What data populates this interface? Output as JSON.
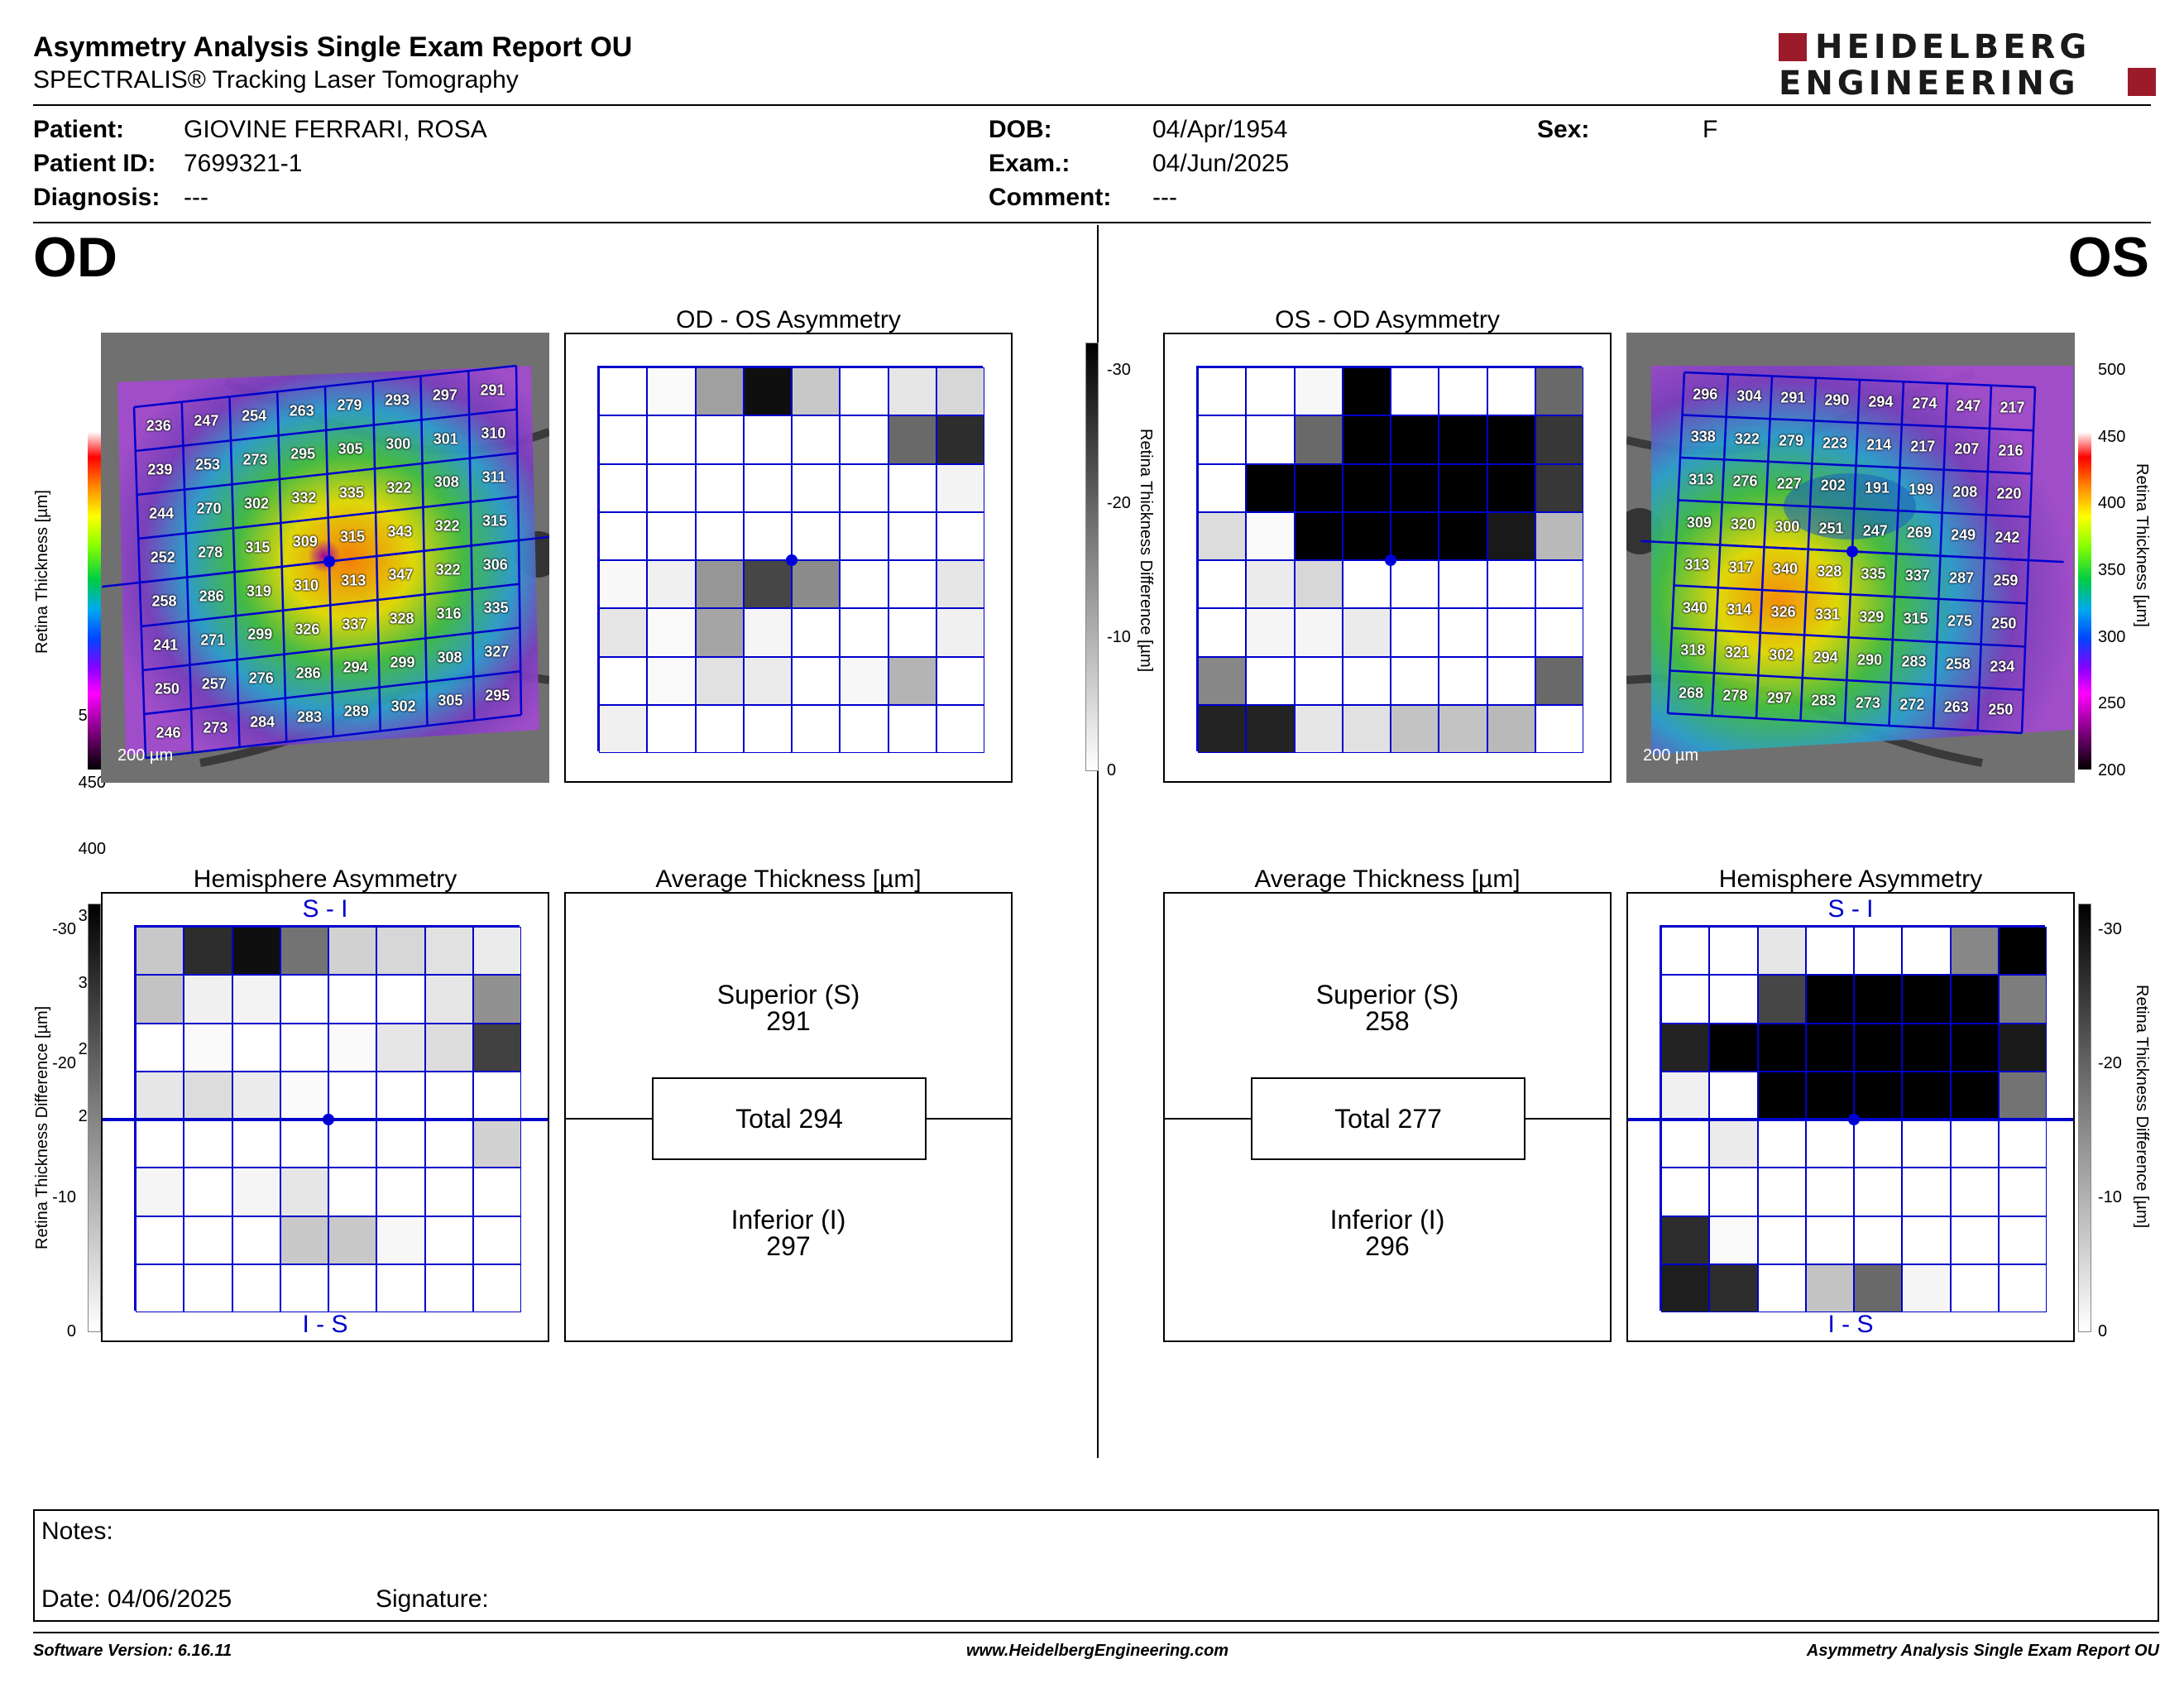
{
  "header": {
    "title": "Asymmetry Analysis Single Exam Report OU",
    "subtitle": "SPECTRALIS® Tracking Laser Tomography",
    "logo_line1": "HEIDELBERG",
    "logo_line2": "ENGINEERING",
    "logo_color": "#9b1b2a"
  },
  "patient": {
    "patient_label": "Patient:",
    "patient_value": "GIOVINE FERRARI, ROSA",
    "id_label": "Patient ID:",
    "id_value": "7699321-1",
    "diagnosis_label": "Diagnosis:",
    "diagnosis_value": "---",
    "dob_label": "DOB:",
    "dob_value": "04/Apr/1954",
    "exam_label": "Exam.:",
    "exam_value": "04/Jun/2025",
    "comment_label": "Comment:",
    "comment_value": "---",
    "sex_label": "Sex:",
    "sex_value": "F"
  },
  "od": {
    "eye_label": "OD",
    "asym_title": "OD - OS Asymmetry",
    "hemi_title": "Hemisphere Asymmetry",
    "hemi_top": "S - I",
    "hemi_bottom": "I - S",
    "avg_title": "Average Thickness [µm]",
    "superior_label": "Superior (S)",
    "superior_value": "291",
    "total_label": "Total 294",
    "inferior_label": "Inferior (I)",
    "inferior_value": "297",
    "scale_label": "200 µm",
    "thickness": [
      [
        236,
        247,
        254,
        263,
        279,
        293,
        297,
        291
      ],
      [
        239,
        253,
        273,
        295,
        305,
        300,
        301,
        310
      ],
      [
        244,
        270,
        302,
        332,
        335,
        322,
        308,
        311
      ],
      [
        252,
        278,
        315,
        309,
        315,
        343,
        322,
        315
      ],
      [
        258,
        286,
        319,
        310,
        313,
        347,
        322,
        306
      ],
      [
        241,
        271,
        299,
        326,
        337,
        328,
        316,
        335
      ],
      [
        250,
        257,
        276,
        286,
        294,
        299,
        308,
        327
      ],
      [
        246,
        273,
        284,
        283,
        289,
        302,
        305,
        295
      ]
    ],
    "asym_shades": [
      [
        0,
        5,
        95,
        240,
        55,
        0,
        25,
        40
      ],
      [
        0,
        0,
        0,
        0,
        0,
        0,
        150,
        210
      ],
      [
        0,
        0,
        0,
        0,
        0,
        0,
        0,
        12
      ],
      [
        0,
        0,
        0,
        0,
        0,
        0,
        0,
        0
      ],
      [
        6,
        15,
        105,
        185,
        115,
        0,
        0,
        25
      ],
      [
        25,
        5,
        90,
        10,
        0,
        0,
        0,
        15
      ],
      [
        0,
        5,
        30,
        20,
        0,
        8,
        75,
        0
      ],
      [
        15,
        0,
        0,
        0,
        0,
        0,
        0,
        0
      ]
    ],
    "hemi_shades": [
      [
        55,
        210,
        240,
        140,
        45,
        40,
        30,
        20
      ],
      [
        60,
        15,
        12,
        0,
        0,
        0,
        25,
        110
      ],
      [
        0,
        5,
        0,
        0,
        5,
        25,
        35,
        190
      ],
      [
        25,
        35,
        20,
        5,
        0,
        0,
        0,
        0
      ],
      [
        0,
        0,
        0,
        0,
        0,
        0,
        0,
        45
      ],
      [
        10,
        0,
        10,
        25,
        0,
        0,
        0,
        0
      ],
      [
        0,
        0,
        0,
        55,
        55,
        8,
        0,
        0
      ],
      [
        0,
        0,
        0,
        0,
        0,
        0,
        0,
        0
      ]
    ]
  },
  "os": {
    "eye_label": "OS",
    "asym_title": "OS - OD Asymmetry",
    "hemi_title": "Hemisphere Asymmetry",
    "hemi_top": "S - I",
    "hemi_bottom": "I - S",
    "avg_title": "Average Thickness [µm]",
    "superior_label": "Superior (S)",
    "superior_value": "258",
    "total_label": "Total 277",
    "inferior_label": "Inferior (I)",
    "inferior_value": "296",
    "scale_label": "200 µm",
    "thickness": [
      [
        296,
        304,
        291,
        290,
        294,
        274,
        247,
        217
      ],
      [
        338,
        322,
        279,
        223,
        214,
        217,
        207,
        216
      ],
      [
        313,
        276,
        227,
        202,
        191,
        199,
        208,
        220
      ],
      [
        309,
        320,
        300,
        251,
        247,
        269,
        249,
        242
      ],
      [
        313,
        317,
        340,
        328,
        335,
        337,
        287,
        259
      ],
      [
        340,
        314,
        326,
        331,
        329,
        315,
        275,
        250
      ],
      [
        318,
        321,
        302,
        294,
        290,
        283,
        258,
        234
      ],
      [
        268,
        278,
        297,
        283,
        273,
        272,
        263,
        250
      ]
    ],
    "asym_shades": [
      [
        0,
        0,
        8,
        255,
        0,
        0,
        0,
        150
      ],
      [
        0,
        0,
        150,
        255,
        255,
        255,
        255,
        200
      ],
      [
        0,
        255,
        255,
        255,
        255,
        255,
        255,
        200
      ],
      [
        35,
        5,
        255,
        255,
        255,
        255,
        230,
        70
      ],
      [
        0,
        20,
        40,
        0,
        0,
        0,
        0,
        0
      ],
      [
        0,
        10,
        10,
        20,
        0,
        0,
        0,
        0
      ],
      [
        120,
        0,
        0,
        0,
        0,
        0,
        0,
        150
      ],
      [
        220,
        220,
        25,
        30,
        60,
        60,
        70,
        0
      ]
    ],
    "hemi_shades": [
      [
        0,
        0,
        25,
        0,
        0,
        0,
        120,
        255
      ],
      [
        0,
        0,
        185,
        255,
        255,
        255,
        255,
        130
      ],
      [
        220,
        255,
        255,
        255,
        255,
        255,
        255,
        230
      ],
      [
        15,
        0,
        255,
        255,
        255,
        255,
        255,
        140
      ],
      [
        0,
        20,
        0,
        0,
        0,
        0,
        0,
        0
      ],
      [
        0,
        0,
        0,
        0,
        0,
        0,
        0,
        0
      ],
      [
        210,
        5,
        0,
        0,
        0,
        0,
        0,
        0
      ],
      [
        225,
        210,
        0,
        60,
        150,
        10,
        0,
        0
      ]
    ]
  },
  "thickness_scale": {
    "title": "Retina Thickness [µm]",
    "ticks": [
      "500",
      "450",
      "400",
      "350",
      "300",
      "250",
      "200"
    ]
  },
  "diff_scale": {
    "title": "Retina Thickness Difference [µm]",
    "ticks": [
      "-30",
      "-20",
      "-10",
      "0"
    ]
  },
  "notes": {
    "notes_label": "Notes:",
    "date_label": "Date: 04/06/2025",
    "signature_label": "Signature:"
  },
  "footer": {
    "software": "Software Version: 6.16.11",
    "website": "www.HeidelbergEngineering.com",
    "report": "Asymmetry Analysis Single Exam Report OU"
  }
}
